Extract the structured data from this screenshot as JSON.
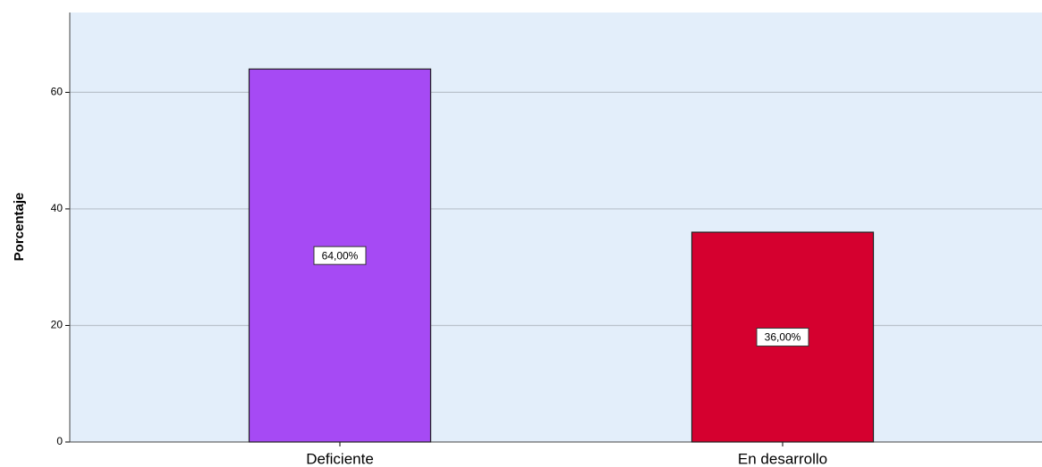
{
  "chart_data": {
    "type": "bar",
    "y_label": "Porcentaje",
    "categories": [
      "Deficiente",
      "En desarrollo"
    ],
    "series": [
      {
        "name": null,
        "colors": [
          "#a64af4",
          "#d5002f"
        ],
        "values": [
          64,
          36
        ],
        "value_labels": [
          "64,00%",
          "36,00%"
        ]
      }
    ],
    "ylim": [
      0,
      73.7
    ],
    "yticks": [
      0,
      20,
      40,
      60
    ],
    "grid": true
  }
}
